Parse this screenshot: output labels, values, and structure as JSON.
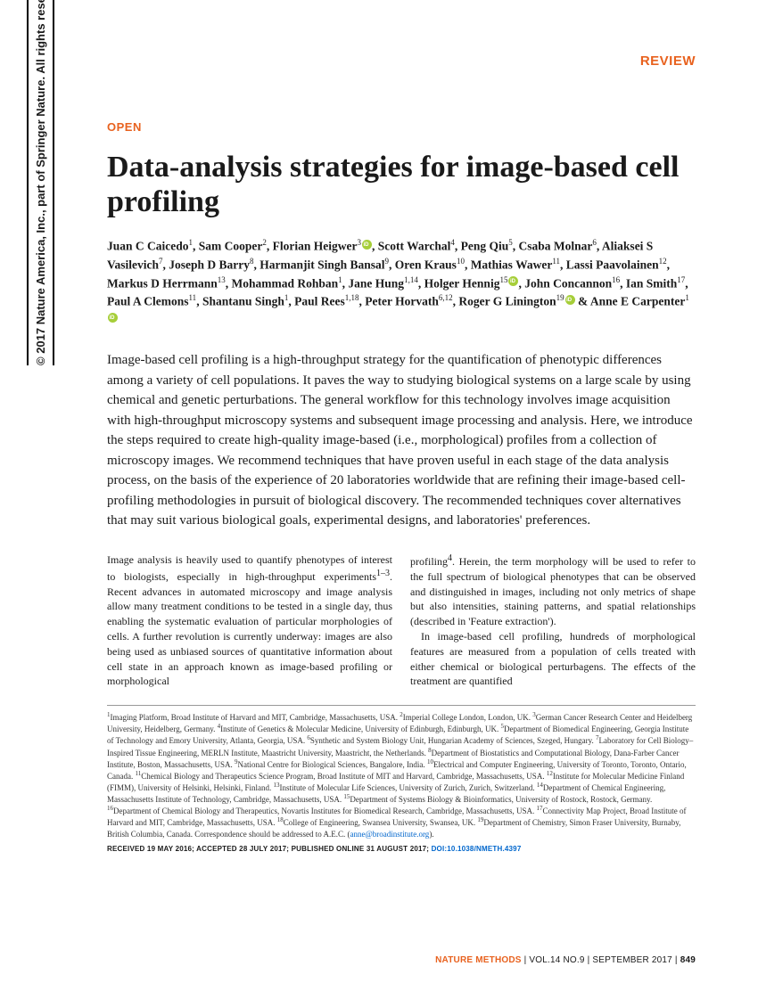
{
  "colors": {
    "accent_orange": "#e8621f",
    "link_blue": "#0066cc",
    "orcid_green": "#a6ce39",
    "text": "#1a1a1a",
    "background": "#ffffff"
  },
  "copyright_sidebar": "© 2017 Nature America, Inc., part of Springer Nature. All rights reserved.",
  "header": {
    "review_label": "REVIEW",
    "open_label": "OPEN"
  },
  "title": "Data-analysis strategies for image-based cell profiling",
  "authors_html": "Juan C Caicedo<sup>1</sup>, Sam Cooper<sup>2</sup>, Florian Heigwer<sup>3</sup><span class='orcid'></span>, Scott Warchal<sup>4</sup>, Peng Qiu<sup>5</sup>, Csaba Molnar<sup>6</sup>, Aliaksei S Vasilevich<sup>7</sup>, Joseph D Barry<sup>8</sup>, Harmanjit Singh Bansal<sup>9</sup>, Oren Kraus<sup>10</sup>, Mathias Wawer<sup>11</sup>, Lassi Paavolainen<sup>12</sup>, Markus D Herrmann<sup>13</sup>, Mohammad Rohban<sup>1</sup>, Jane Hung<sup>1,14</sup>, Holger Hennig<sup>15</sup><span class='orcid'></span>, John Concannon<sup>16</sup>, Ian Smith<sup>17</sup>, Paul A Clemons<sup>11</sup>, Shantanu Singh<sup>1</sup>, Paul Rees<sup>1,18</sup>, Peter Horvath<sup>6,12</sup>, Roger G Linington<sup>19</sup><span class='orcid'></span> & Anne E Carpenter<sup>1</sup><span class='orcid'></span>",
  "abstract": "Image-based cell profiling is a high-throughput strategy for the quantification of phenotypic differences among a variety of cell populations. It paves the way to studying biological systems on a large scale by using chemical and genetic perturbations. The general workflow for this technology involves image acquisition with high-throughput microscopy systems and subsequent image processing and analysis. Here, we introduce the steps required to create high-quality image-based (i.e., morphological) profiles from a collection of microscopy images. We recommend techniques that have proven useful in each stage of the data analysis process, on the basis of the experience of 20 laboratories worldwide that are refining their image-based cell-profiling methodologies in pursuit of biological discovery. The recommended techniques cover alternatives that may suit various biological goals, experimental designs, and laboratories' preferences.",
  "body": {
    "col1": "Image analysis is heavily used to quantify phenotypes of interest to biologists, especially in high-throughput experiments<sup>1–3</sup>. Recent advances in automated microscopy and image analysis allow many treatment conditions to be tested in a single day, thus enabling the systematic evaluation of particular morphologies of cells. A further revolution is currently underway: images are also being used as unbiased sources of quantitative information about cell state in an approach known as image-based profiling or morphological",
    "col2_p1": "profiling<sup>4</sup>. Herein, the term morphology will be used to refer to the full spectrum of biological phenotypes that can be observed and distinguished in images, including not only metrics of shape but also intensities, staining patterns, and spatial relationships (described in 'Feature extraction').",
    "col2_p2": "In image-based cell profiling, hundreds of morphological features are measured from a population of cells treated with either chemical or biological perturbagens. The effects of the treatment are quantified"
  },
  "affiliations": "<sup>1</sup>Imaging Platform, Broad Institute of Harvard and MIT, Cambridge, Massachusetts, USA. <sup>2</sup>Imperial College London, London, UK. <sup>3</sup>German Cancer Research Center and Heidelberg University, Heidelberg, Germany. <sup>4</sup>Institute of Genetics & Molecular Medicine, University of Edinburgh, Edinburgh, UK. <sup>5</sup>Department of Biomedical Engineering, Georgia Institute of Technology and Emory University, Atlanta, Georgia, USA. <sup>6</sup>Synthetic and System Biology Unit, Hungarian Academy of Sciences, Szeged, Hungary. <sup>7</sup>Laboratory for Cell Biology–Inspired Tissue Engineering, MERLN Institute, Maastricht University, Maastricht, the Netherlands. <sup>8</sup>Department of Biostatistics and Computational Biology, Dana-Farber Cancer Institute, Boston, Massachusetts, USA. <sup>9</sup>National Centre for Biological Sciences, Bangalore, India. <sup>10</sup>Electrical and Computer Engineering, University of Toronto, Toronto, Ontario, Canada. <sup>11</sup>Chemical Biology and Therapeutics Science Program, Broad Institute of MIT and Harvard, Cambridge, Massachusetts, USA. <sup>12</sup>Institute for Molecular Medicine Finland (FIMM), University of Helsinki, Helsinki, Finland. <sup>13</sup>Institute of Molecular Life Sciences, University of Zurich, Zurich, Switzerland. <sup>14</sup>Department of Chemical Engineering, Massachusetts Institute of Technology, Cambridge, Massachusetts, USA. <sup>15</sup>Department of Systems Biology & Bioinformatics, University of Rostock, Rostock, Germany. <sup>16</sup>Department of Chemical Biology and Therapeutics, Novartis Institutes for Biomedical Research, Cambridge, Massachusetts, USA. <sup>17</sup>Connectivity Map Project, Broad Institute of Harvard and MIT, Cambridge, Massachusetts, USA. <sup>18</sup>College of Engineering, Swansea University, Swansea, UK. <sup>19</sup>Department of Chemistry, Simon Fraser University, Burnaby, British Columbia, Canada. Correspondence should be addressed to A.E.C. (<a href='#' class='corr-link' data-name='correspondence-email-link' data-interactable='true'>anne@broadinstitute.org</a>).",
  "dates": {
    "received": "RECEIVED 19 MAY 2016; ACCEPTED 28 JULY 2017; PUBLISHED ONLINE 31 AUGUST 2017; ",
    "doi_label": "DOI:10.1038/NMETH.4397"
  },
  "footer": {
    "journal": "NATURE METHODS",
    "separator": " | ",
    "issue": "VOL.14 NO.9",
    "date": "SEPTEMBER 2017",
    "page": "849"
  }
}
